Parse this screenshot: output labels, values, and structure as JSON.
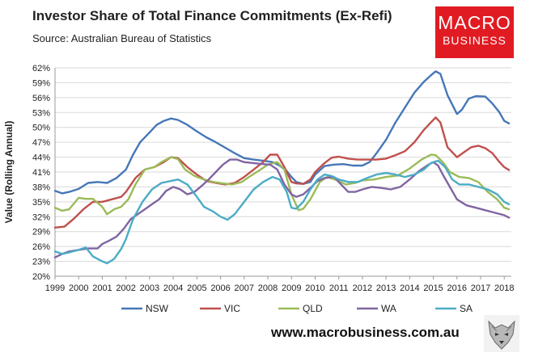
{
  "header": {
    "title": "Investor Share of Total Finance Commitments (Ex-Refi)",
    "subtitle": "Source: Australian Bureau of Statistics"
  },
  "brand": {
    "logo_line1": "MACRO",
    "logo_line2": "BUSINESS",
    "logo_color": "#e11b22",
    "website": "www.macrobusiness.com.au"
  },
  "chart_data": {
    "type": "line",
    "title": "Investor Share of Total Finance Commitments (Ex-Refi)",
    "xlabel": "",
    "ylabel": "Value (Rolling Annual)",
    "ylim": [
      20,
      62
    ],
    "xlim": [
      1999,
      2018.3
    ],
    "y_ticks": [
      20,
      23,
      26,
      29,
      32,
      35,
      38,
      41,
      44,
      47,
      50,
      53,
      56,
      59,
      62
    ],
    "y_tick_labels": [
      "20%",
      "23%",
      "26%",
      "29%",
      "32%",
      "35%",
      "38%",
      "41%",
      "44%",
      "47%",
      "50%",
      "53%",
      "56%",
      "59%",
      "62%"
    ],
    "x_ticks": [
      1999,
      2000,
      2001,
      2002,
      2003,
      2004,
      2005,
      2006,
      2007,
      2008,
      2009,
      2010,
      2011,
      2012,
      2013,
      2014,
      2015,
      2016,
      2017,
      2018
    ],
    "x_tick_labels": [
      "1999",
      "2000",
      "2001",
      "2002",
      "2003",
      "2004",
      "2005",
      "2006",
      "2007",
      "2008",
      "2009",
      "2010",
      "2011",
      "2012",
      "2013",
      "2014",
      "2015",
      "2016",
      "2017",
      "2018"
    ],
    "grid": true,
    "legend_position": "bottom",
    "series": [
      {
        "name": "NSW",
        "color": "#4677b8",
        "x": [
          1999.0,
          1999.3,
          1999.6,
          2000.0,
          2000.4,
          2000.8,
          2001.2,
          2001.6,
          2002.0,
          2002.3,
          2002.6,
          2003.0,
          2003.3,
          2003.6,
          2003.9,
          2004.2,
          2004.6,
          2005.0,
          2005.4,
          2005.8,
          2006.2,
          2006.6,
          2007.0,
          2007.4,
          2007.8,
          2008.2,
          2008.5,
          2008.8,
          2009.0,
          2009.2,
          2009.5,
          2009.8,
          2010.0,
          2010.4,
          2010.8,
          2011.2,
          2011.6,
          2012.0,
          2012.3,
          2012.6,
          2013.0,
          2013.4,
          2013.8,
          2014.2,
          2014.6,
          2014.9,
          2015.1,
          2015.3,
          2015.6,
          2016.0,
          2016.2,
          2016.5,
          2016.8,
          2017.2,
          2017.5,
          2017.8,
          2018.0,
          2018.2
        ],
        "values": [
          37.2,
          36.7,
          37.0,
          37.6,
          38.8,
          39.0,
          38.8,
          39.8,
          41.5,
          44.5,
          47.0,
          49.0,
          50.5,
          51.3,
          51.8,
          51.5,
          50.5,
          49.2,
          48.0,
          47.0,
          45.9,
          44.8,
          43.8,
          43.5,
          43.3,
          43.0,
          42.3,
          41.2,
          40.0,
          39.0,
          38.6,
          39.0,
          40.5,
          42.2,
          42.5,
          42.6,
          42.3,
          42.3,
          43.0,
          44.8,
          47.5,
          51.0,
          54.0,
          57.0,
          59.2,
          60.5,
          61.3,
          60.8,
          56.5,
          52.7,
          53.5,
          55.8,
          56.3,
          56.2,
          54.8,
          53.0,
          51.3,
          50.8
        ]
      },
      {
        "name": "VIC",
        "color": "#c0504d",
        "x": [
          1999.0,
          1999.4,
          1999.8,
          2000.2,
          2000.6,
          2001.0,
          2001.4,
          2001.8,
          2002.0,
          2002.4,
          2002.8,
          2003.2,
          2003.6,
          2003.9,
          2004.2,
          2004.6,
          2005.0,
          2005.4,
          2005.8,
          2006.2,
          2006.6,
          2007.0,
          2007.4,
          2007.8,
          2008.1,
          2008.4,
          2008.7,
          2009.0,
          2009.2,
          2009.5,
          2009.8,
          2010.0,
          2010.4,
          2010.7,
          2011.0,
          2011.4,
          2011.8,
          2012.2,
          2012.6,
          2013.0,
          2013.4,
          2013.8,
          2014.2,
          2014.6,
          2014.9,
          2015.1,
          2015.3,
          2015.6,
          2016.0,
          2016.3,
          2016.6,
          2016.9,
          2017.2,
          2017.5,
          2017.8,
          2018.0,
          2018.2
        ],
        "values": [
          29.8,
          30.0,
          31.6,
          33.5,
          35.0,
          35.0,
          35.5,
          36.0,
          37.0,
          39.8,
          41.5,
          42.0,
          43.0,
          44.0,
          43.8,
          42.0,
          40.5,
          39.2,
          38.8,
          38.5,
          38.8,
          40.0,
          41.5,
          43.0,
          44.5,
          44.5,
          42.0,
          39.0,
          38.7,
          38.6,
          39.5,
          41.0,
          42.8,
          43.9,
          44.1,
          43.7,
          43.5,
          43.5,
          43.5,
          43.7,
          44.4,
          45.2,
          47.0,
          49.5,
          51.0,
          52.0,
          51.0,
          46.0,
          44.0,
          45.0,
          46.0,
          46.3,
          45.8,
          44.8,
          43.0,
          42.0,
          41.4
        ]
      },
      {
        "name": "QLD",
        "color": "#9bbb59",
        "x": [
          1999.0,
          1999.3,
          1999.6,
          2000.0,
          2000.3,
          2000.6,
          2001.0,
          2001.2,
          2001.5,
          2001.8,
          2002.1,
          2002.4,
          2002.8,
          2003.2,
          2003.5,
          2003.9,
          2004.2,
          2004.5,
          2004.9,
          2005.3,
          2005.7,
          2006.1,
          2006.5,
          2006.9,
          2007.3,
          2007.7,
          2008.0,
          2008.4,
          2008.7,
          2009.0,
          2009.3,
          2009.5,
          2009.8,
          2010.2,
          2010.5,
          2010.9,
          2011.3,
          2011.7,
          2012.0,
          2012.5,
          2013.0,
          2013.5,
          2014.0,
          2014.5,
          2014.9,
          2015.1,
          2015.4,
          2015.7,
          2016.1,
          2016.5,
          2016.9,
          2017.3,
          2017.7,
          2018.0,
          2018.2
        ],
        "values": [
          33.8,
          33.2,
          33.5,
          35.8,
          35.6,
          35.6,
          34.0,
          32.5,
          33.5,
          34.0,
          35.5,
          38.5,
          41.5,
          42.0,
          43.0,
          44.0,
          43.6,
          41.5,
          40.2,
          39.5,
          39.0,
          38.7,
          38.5,
          39.0,
          40.3,
          41.5,
          42.5,
          43.0,
          41.5,
          36.5,
          33.3,
          33.6,
          35.5,
          39.0,
          40.0,
          39.4,
          38.5,
          38.8,
          39.3,
          39.5,
          40.0,
          40.3,
          41.7,
          43.5,
          44.5,
          44.4,
          43.0,
          41.0,
          40.0,
          39.8,
          39.0,
          37.0,
          35.5,
          33.8,
          33.5
        ]
      },
      {
        "name": "WA",
        "color": "#8064a2",
        "x": [
          1999.0,
          1999.3,
          1999.6,
          2000.0,
          2000.4,
          2000.8,
          2001.0,
          2001.3,
          2001.6,
          2001.9,
          2002.2,
          2002.5,
          2002.8,
          2003.1,
          2003.4,
          2003.7,
          2004.0,
          2004.3,
          2004.6,
          2004.9,
          2005.2,
          2005.5,
          2005.8,
          2006.1,
          2006.4,
          2006.7,
          2007.0,
          2007.4,
          2007.8,
          2008.1,
          2008.4,
          2008.7,
          2009.0,
          2009.2,
          2009.5,
          2009.8,
          2010.1,
          2010.4,
          2010.8,
          2011.1,
          2011.4,
          2011.7,
          2012.0,
          2012.4,
          2012.8,
          2013.2,
          2013.6,
          2014.0,
          2014.4,
          2014.8,
          2015.0,
          2015.2,
          2015.4,
          2015.7,
          2016.0,
          2016.4,
          2016.8,
          2017.2,
          2017.6,
          2018.0,
          2018.2
        ],
        "values": [
          23.8,
          24.5,
          25.0,
          25.3,
          25.6,
          25.6,
          26.5,
          27.2,
          28.0,
          29.5,
          31.5,
          32.5,
          33.5,
          34.5,
          35.5,
          37.2,
          38.0,
          37.5,
          36.5,
          37.0,
          38.2,
          39.5,
          41.0,
          42.5,
          43.5,
          43.5,
          43.0,
          42.8,
          42.6,
          42.5,
          41.5,
          38.5,
          36.5,
          36.0,
          36.5,
          37.8,
          39.2,
          39.8,
          40.0,
          38.5,
          37.0,
          37.0,
          37.5,
          38.0,
          37.8,
          37.5,
          38.0,
          39.5,
          41.2,
          42.5,
          43.0,
          42.3,
          40.5,
          38.0,
          35.5,
          34.3,
          33.8,
          33.3,
          32.8,
          32.3,
          31.8
        ]
      },
      {
        "name": "SA",
        "color": "#4bacc6",
        "x": [
          1999.0,
          1999.3,
          1999.6,
          2000.0,
          2000.3,
          2000.6,
          2001.0,
          2001.2,
          2001.5,
          2001.8,
          2002.0,
          2002.3,
          2002.7,
          2003.1,
          2003.5,
          2003.9,
          2004.2,
          2004.6,
          2005.0,
          2005.3,
          2005.7,
          2006.0,
          2006.3,
          2006.6,
          2007.0,
          2007.4,
          2007.8,
          2008.2,
          2008.5,
          2008.8,
          2009.0,
          2009.2,
          2009.5,
          2009.8,
          2010.1,
          2010.4,
          2010.7,
          2011.0,
          2011.4,
          2011.8,
          2012.2,
          2012.6,
          2013.0,
          2013.4,
          2013.8,
          2014.2,
          2014.6,
          2014.9,
          2015.2,
          2015.5,
          2015.8,
          2016.1,
          2016.5,
          2016.9,
          2017.3,
          2017.7,
          2018.0,
          2018.2
        ],
        "values": [
          25.0,
          24.5,
          24.8,
          25.3,
          25.8,
          24.0,
          23.0,
          22.6,
          23.5,
          25.5,
          27.5,
          31.5,
          35.0,
          37.5,
          38.8,
          39.2,
          39.5,
          38.5,
          36.0,
          34.0,
          33.0,
          32.0,
          31.4,
          32.5,
          35.0,
          37.5,
          39.0,
          40.0,
          39.5,
          37.0,
          33.8,
          33.6,
          35.0,
          37.5,
          39.5,
          40.5,
          40.2,
          39.5,
          39.0,
          39.0,
          39.8,
          40.5,
          40.8,
          40.5,
          40.0,
          40.5,
          41.5,
          42.8,
          43.3,
          42.0,
          39.5,
          38.5,
          38.5,
          38.0,
          37.5,
          36.5,
          35.0,
          34.5
        ]
      }
    ]
  }
}
